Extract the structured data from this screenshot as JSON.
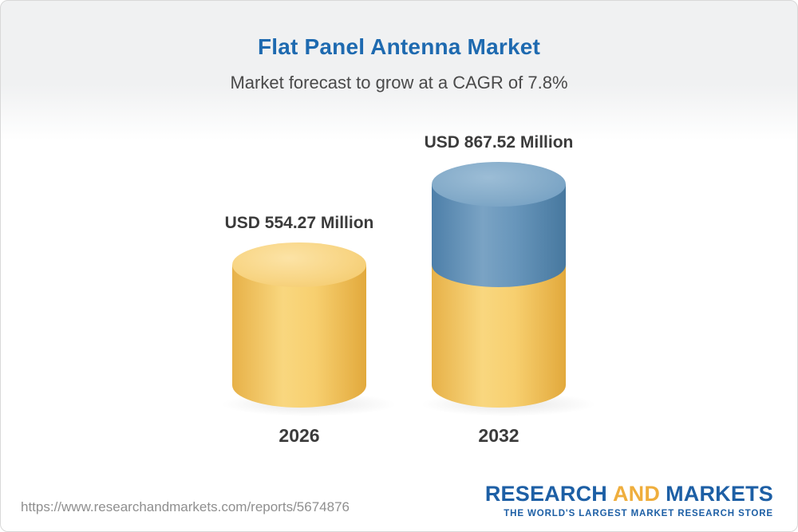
{
  "header": {
    "title": "Flat Panel Antenna Market",
    "subtitle": "Market forecast to grow at a CAGR of 7.8%"
  },
  "chart_data": {
    "type": "bar",
    "categories": [
      "2026",
      "2032"
    ],
    "values": [
      554.27,
      867.52
    ],
    "value_labels": [
      "USD 554.27 Million",
      "USD 867.52 Million"
    ],
    "unit": "USD Million",
    "title": "Flat Panel Antenna Market",
    "subtitle": "Market forecast to grow at a CAGR of 7.8%",
    "ylim": [
      0,
      867.52
    ],
    "colors": {
      "base_segment": "#f6c75e",
      "growth_segment": "#5d8fba",
      "title": "#1e6ab0"
    }
  },
  "footer": {
    "url": "https://www.researchandmarkets.com/reports/5674876",
    "logo": {
      "research": "RESEARCH",
      "and": "AND",
      "markets": "MARKETS",
      "tagline": "THE WORLD'S LARGEST MARKET RESEARCH STORE"
    }
  }
}
